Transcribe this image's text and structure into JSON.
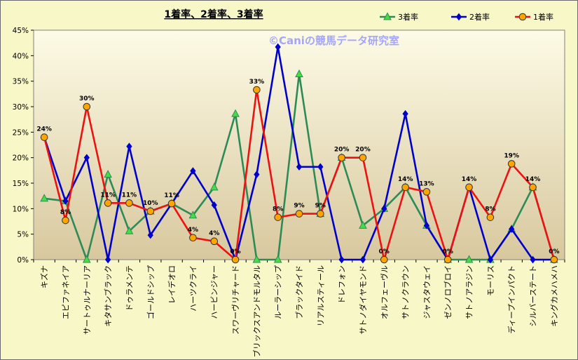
{
  "chart_data": {
    "type": "line",
    "title": "1着率、2着率、3着率",
    "watermark": "©Caniの競馬データ研究室",
    "ylim": [
      0,
      45
    ],
    "yticks": [
      "0%",
      "5%",
      "10%",
      "15%",
      "20%",
      "25%",
      "30%",
      "35%",
      "40%",
      "45%"
    ],
    "grid": false,
    "legend_position": "top-right",
    "categories": [
      "キズナ",
      "エピファネイア",
      "サートゥルナーリア",
      "キタサンブラック",
      "ドゥラメンテ",
      "ゴールドシップ",
      "レイデオロ",
      "ハーツクライ",
      "ハービンジャー",
      "スワーヴリチャード",
      "ブリックスアンドモルタル",
      "ルーラーシップ",
      "ブラックタイド",
      "リアルスティール",
      "ドレフォン",
      "サトノダイヤモンド",
      "オルフェーヴル",
      "サトノクラウン",
      "ジャスタウェイ",
      "ゼンノロブロイ",
      "サトノアラジン",
      "モーリス",
      "ディープインパクト",
      "シルバーステート",
      "キングカメハメハ"
    ],
    "series": [
      {
        "name": "3着率",
        "color": "#2e8b57",
        "marker": "triangle",
        "marker_fill": "#44dd44",
        "values": [
          12,
          11.5,
          0,
          16.7,
          5.6,
          9.5,
          11,
          8.7,
          14.2,
          28.6,
          0,
          0,
          36.4,
          9,
          20,
          6.7,
          10,
          14.2,
          6.7,
          0,
          0,
          0,
          6,
          14.2,
          0
        ]
      },
      {
        "name": "2着率",
        "color": "#0000cc",
        "marker": "diamond",
        "marker_fill": "#0000cc",
        "values": [
          24,
          11.5,
          20,
          0,
          22.2,
          4.8,
          11,
          17.4,
          10.7,
          0,
          16.7,
          41.7,
          18.2,
          18.2,
          0,
          0,
          10,
          28.6,
          6.7,
          0,
          14.2,
          0,
          6,
          0,
          0
        ]
      },
      {
        "name": "1着率",
        "color": "#ee1111",
        "marker": "circle",
        "marker_fill": "#ffa500",
        "values": [
          24,
          7.7,
          30,
          11.1,
          11.1,
          9.5,
          11,
          4.3,
          3.6,
          0,
          33.3,
          8.3,
          9,
          9,
          20,
          20,
          0,
          14.2,
          13.3,
          0,
          14.2,
          8.3,
          18.8,
          14.2,
          0
        ],
        "data_labels": [
          "24%",
          "8%",
          "30%",
          "11%",
          "11%",
          "10%",
          "11%",
          "4%",
          "4%",
          "0%",
          "33%",
          "8%",
          "9%",
          "9%",
          "20%",
          "20%",
          "0%",
          "14%",
          "13%",
          "0%",
          "14%",
          "8%",
          "19%",
          "14%",
          "0%"
        ]
      }
    ]
  }
}
